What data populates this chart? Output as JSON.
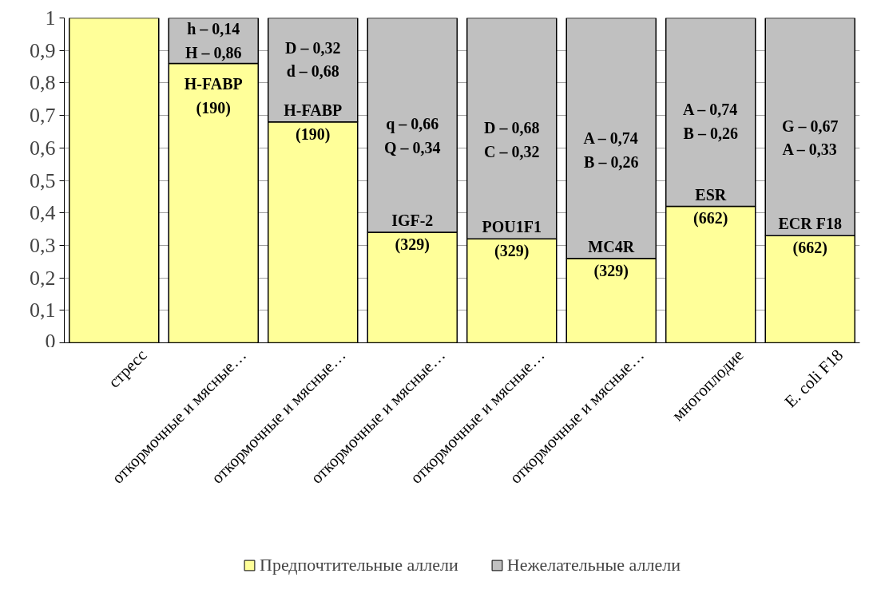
{
  "chart_data": {
    "type": "bar",
    "stacked": true,
    "categories": [
      "стресс",
      "откормочные и мясные…",
      "откормочные и мясные…",
      "откормочные и мясные…",
      "откормочные и мясные…",
      "откормочные и мясные…",
      "многоплодие",
      "E. coli F18"
    ],
    "series": [
      {
        "name": "Предпочтительные аллели",
        "color": "#ffff99",
        "values": [
          1,
          0.86,
          0.68,
          0.34,
          0.32,
          0.26,
          0.42,
          0.33
        ]
      },
      {
        "name": "Нежелательные аллели",
        "color": "#c0c0c0",
        "values": [
          0,
          0.14,
          0.32,
          0.66,
          0.68,
          0.74,
          0.58,
          0.67
        ]
      }
    ],
    "annotations": [
      "h – 0,14\nH – 0,86",
      "H-FABP\n(190)",
      "D – 0,32\nd – 0,68",
      "H-FABP\n(190)",
      "q – 0,66\nQ – 0,34",
      "IGF-2\n(329)",
      "D – 0,68\nC – 0,32",
      "POU1F1\n(329)",
      "A – 0,74\nB – 0,26",
      "MC4R\n(329)",
      "A – 0,74\nB – 0,26",
      "ESR\n(662)",
      "G – 0,67\nA – 0,33",
      "ECR F18\n(662)"
    ],
    "ylim": [
      0,
      1
    ],
    "yticks": [
      0,
      {
        "value": 0.1,
        "label": "0,1"
      },
      {
        "value": 0.2,
        "label": "0,2"
      },
      {
        "value": 0.3,
        "label": "0,3"
      },
      {
        "value": 0.4,
        "label": "0,4"
      },
      {
        "value": 0.5,
        "label": "0,5"
      },
      {
        "value": 0.6,
        "label": "0,6"
      },
      {
        "value": 0.7,
        "label": "0,7"
      },
      {
        "value": 0.8,
        "label": "0,8"
      },
      {
        "value": 0.9,
        "label": "0,9"
      },
      1
    ],
    "grid": "y",
    "legend": "bottom"
  }
}
